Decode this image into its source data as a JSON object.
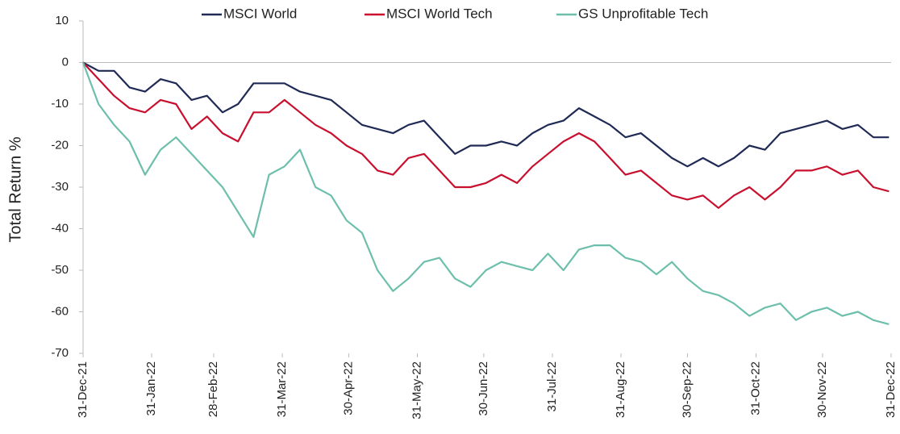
{
  "chart_data": {
    "type": "line",
    "y_label": "Total Return %",
    "x": [
      "2021-12-31",
      "2022-01-07",
      "2022-01-14",
      "2022-01-21",
      "2022-01-28",
      "2022-02-04",
      "2022-02-11",
      "2022-02-18",
      "2022-02-25",
      "2022-03-04",
      "2022-03-11",
      "2022-03-18",
      "2022-03-25",
      "2022-04-01",
      "2022-04-08",
      "2022-04-15",
      "2022-04-22",
      "2022-04-29",
      "2022-05-06",
      "2022-05-13",
      "2022-05-20",
      "2022-05-27",
      "2022-06-03",
      "2022-06-10",
      "2022-06-17",
      "2022-06-24",
      "2022-07-01",
      "2022-07-08",
      "2022-07-15",
      "2022-07-22",
      "2022-07-29",
      "2022-08-05",
      "2022-08-12",
      "2022-08-19",
      "2022-08-26",
      "2022-09-02",
      "2022-09-09",
      "2022-09-16",
      "2022-09-23",
      "2022-09-30",
      "2022-10-07",
      "2022-10-14",
      "2022-10-21",
      "2022-10-28",
      "2022-11-04",
      "2022-11-11",
      "2022-11-18",
      "2022-11-25",
      "2022-12-02",
      "2022-12-09",
      "2022-12-16",
      "2022-12-23",
      "2022-12-30"
    ],
    "series": [
      {
        "name": "MSCI World",
        "color": "#1f2a55",
        "values": [
          0,
          -2,
          -2,
          -6,
          -7,
          -4,
          -5,
          -9,
          -8,
          -12,
          -10,
          -5,
          -5,
          -5,
          -7,
          -8,
          -9,
          -12,
          -15,
          -16,
          -17,
          -15,
          -14,
          -18,
          -22,
          -20,
          -20,
          -19,
          -20,
          -17,
          -15,
          -14,
          -11,
          -13,
          -15,
          -18,
          -17,
          -20,
          -23,
          -25,
          -23,
          -25,
          -23,
          -20,
          -21,
          -17,
          -16,
          -15,
          -14,
          -16,
          -15,
          -18,
          -18
        ]
      },
      {
        "name": "MSCI World Tech",
        "color": "#c8102e",
        "values": [
          0,
          -4,
          -8,
          -11,
          -12,
          -9,
          -10,
          -16,
          -13,
          -17,
          -19,
          -12,
          -12,
          -9,
          -12,
          -15,
          -17,
          -20,
          -22,
          -26,
          -27,
          -23,
          -22,
          -26,
          -30,
          -30,
          -29,
          -27,
          -29,
          -25,
          -22,
          -19,
          -17,
          -19,
          -23,
          -27,
          -26,
          -29,
          -32,
          -33,
          -32,
          -35,
          -32,
          -30,
          -33,
          -30,
          -26,
          -26,
          -25,
          -27,
          -26,
          -30,
          -31
        ]
      },
      {
        "name": "GS Unprofitable Tech",
        "color": "#6dbfab",
        "values": [
          0,
          -10,
          -15,
          -19,
          -27,
          -21,
          -18,
          -22,
          -26,
          -30,
          -36,
          -42,
          -27,
          -25,
          -21,
          -30,
          -32,
          -38,
          -41,
          -50,
          -55,
          -52,
          -48,
          -47,
          -52,
          -54,
          -50,
          -48,
          -49,
          -50,
          -46,
          -50,
          -45,
          -44,
          -44,
          -47,
          -48,
          -51,
          -48,
          -52,
          -55,
          -56,
          -58,
          -61,
          -59,
          -58,
          -62,
          -60,
          -59,
          -61,
          -60,
          -62,
          -63
        ]
      }
    ],
    "xlim": [
      "2021-12-31",
      "2022-12-31"
    ],
    "xticks": [
      {
        "value": "2021-12-31",
        "label": "31-Dec-21"
      },
      {
        "value": "2022-01-31",
        "label": "31-Jan-22"
      },
      {
        "value": "2022-02-28",
        "label": "28-Feb-22"
      },
      {
        "value": "2022-03-31",
        "label": "31-Mar-22"
      },
      {
        "value": "2022-04-30",
        "label": "30-Apr-22"
      },
      {
        "value": "2022-05-31",
        "label": "31-May-22"
      },
      {
        "value": "2022-06-30",
        "label": "30-Jun-22"
      },
      {
        "value": "2022-07-31",
        "label": "31-Jul-22"
      },
      {
        "value": "2022-08-31",
        "label": "31-Aug-22"
      },
      {
        "value": "2022-09-30",
        "label": "30-Sep-22"
      },
      {
        "value": "2022-10-31",
        "label": "31-Oct-22"
      },
      {
        "value": "2022-11-30",
        "label": "30-Nov-22"
      },
      {
        "value": "2022-12-31",
        "label": "31-Dec-22"
      }
    ],
    "ylim": [
      -70,
      10
    ],
    "yticks": [
      -70,
      -60,
      -50,
      -40,
      -30,
      -20,
      -10,
      0,
      10
    ],
    "grid": false,
    "legend": "top"
  }
}
